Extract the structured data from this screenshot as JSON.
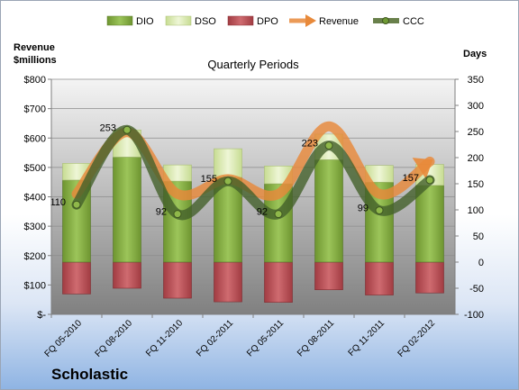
{
  "company": "Scholastic",
  "chart_data": {
    "type": "bar",
    "title": "Quarterly Periods",
    "left_axis_label_line1": "Revenue",
    "left_axis_label_line2": "$millions",
    "right_axis_label": "Days",
    "left_ticks": [
      "$-",
      "$100",
      "$200",
      "$300",
      "$400",
      "$500",
      "$600",
      "$700",
      "$800"
    ],
    "right_ticks": [
      "-100",
      "-50",
      "0",
      "50",
      "100",
      "150",
      "200",
      "250",
      "300",
      "350"
    ],
    "ylim_days": [
      -100,
      350
    ],
    "ylim_revenue": [
      0,
      800
    ],
    "categories": [
      "FQ 05-2010",
      "FQ 08-2010",
      "FQ 11-2010",
      "FQ 02-2011",
      "FQ 05-2011",
      "FQ 08-2011",
      "FQ 11-2011",
      "FQ 02-2012"
    ],
    "series": [
      {
        "name": "DIO",
        "axis": "days",
        "values": [
          157,
          201,
          155,
          162,
          150,
          196,
          153,
          147
        ]
      },
      {
        "name": "DSO",
        "axis": "days",
        "values": [
          32,
          52,
          31,
          55,
          34,
          49,
          32,
          40
        ]
      },
      {
        "name": "DPO",
        "axis": "days",
        "values": [
          -61,
          -50,
          -69,
          -76,
          -77,
          -53,
          -63,
          -59
        ]
      },
      {
        "name": "Revenue",
        "axis": "revenue",
        "values": [
          410,
          620,
          410,
          460,
          410,
          640,
          410,
          520
        ]
      },
      {
        "name": "CCC",
        "axis": "days",
        "values": [
          110,
          253,
          92,
          155,
          92,
          223,
          99,
          157
        ]
      }
    ],
    "ccc_labels": [
      "110",
      "253",
      "92",
      "155",
      "92",
      "223",
      "99",
      "157"
    ],
    "legend": [
      "DIO",
      "DSO",
      "DPO",
      "Revenue",
      "CCC"
    ],
    "legend_position": "top",
    "colors": {
      "DIO": "#7aa33a",
      "DSO": "#d5e6a7",
      "DPO": "#b64a50",
      "Revenue": "#e8893a",
      "CCC": "#4f6a2c",
      "plot_top": "#f2f2f2",
      "plot_bottom": "#7f7f7f"
    }
  }
}
